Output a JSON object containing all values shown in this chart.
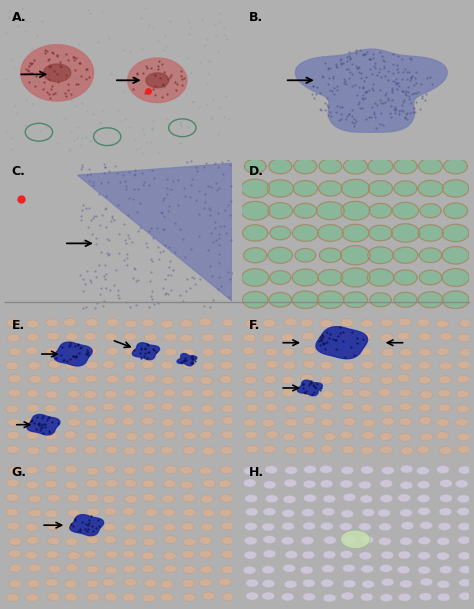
{
  "panels": [
    "A",
    "B",
    "C",
    "D",
    "E",
    "F",
    "G",
    "H"
  ],
  "panel_colors": {
    "A": {
      "bg": "#7ab8a0",
      "tissue_color": "#c07070"
    },
    "B": {
      "bg": "#e8dcc8",
      "tissue_color": "#7880b0"
    },
    "C": {
      "bg": "#ddd8c0",
      "tissue_color": "#7880b0"
    },
    "D": {
      "bg": "#88b898"
    },
    "E": {
      "bg": "#e8c8b0",
      "cell_color": "#2030a0"
    },
    "F": {
      "bg": "#e8c8b0",
      "cell_color": "#2030a0"
    },
    "G": {
      "bg": "#e8c8b0",
      "cell_color": "#2030a0"
    },
    "H": {
      "bg": "#e0d8e8",
      "cell_color": "#4050a0"
    }
  },
  "fig_bg": "#b0b0b0",
  "label_fontsize": 9,
  "arrow_lw": 1.3
}
